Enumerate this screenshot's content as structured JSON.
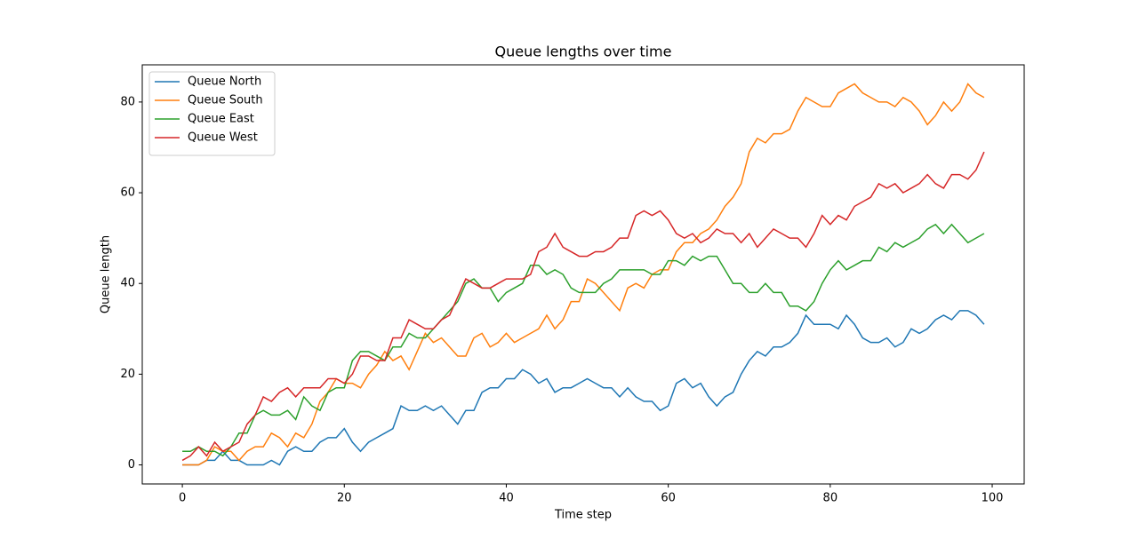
{
  "chart_data": {
    "type": "line",
    "title": "Queue lengths over time",
    "xlabel": "Time step",
    "ylabel": "Queue length",
    "x": [
      0,
      1,
      2,
      3,
      4,
      5,
      6,
      7,
      8,
      9,
      10,
      11,
      12,
      13,
      14,
      15,
      16,
      17,
      18,
      19,
      20,
      21,
      22,
      23,
      24,
      25,
      26,
      27,
      28,
      29,
      30,
      31,
      32,
      33,
      34,
      35,
      36,
      37,
      38,
      39,
      40,
      41,
      42,
      43,
      44,
      45,
      46,
      47,
      48,
      49,
      50,
      51,
      52,
      53,
      54,
      55,
      56,
      57,
      58,
      59,
      60,
      61,
      62,
      63,
      64,
      65,
      66,
      67,
      68,
      69,
      70,
      71,
      72,
      73,
      74,
      75,
      76,
      77,
      78,
      79,
      80,
      81,
      82,
      83,
      84,
      85,
      86,
      87,
      88,
      89,
      90,
      91,
      92,
      93,
      94,
      95,
      96,
      97,
      98,
      99
    ],
    "series": [
      {
        "name": "Queue North",
        "color": "#1f77b4",
        "values": [
          0,
          0,
          0,
          1,
          1,
          3,
          1,
          1,
          0,
          0,
          0,
          1,
          0,
          3,
          4,
          3,
          3,
          5,
          6,
          6,
          8,
          5,
          3,
          5,
          6,
          7,
          8,
          13,
          12,
          12,
          13,
          12,
          13,
          11,
          9,
          12,
          12,
          16,
          17,
          17,
          19,
          19,
          21,
          20,
          18,
          19,
          16,
          17,
          17,
          18,
          19,
          18,
          17,
          17,
          15,
          17,
          15,
          14,
          14,
          12,
          13,
          18,
          19,
          17,
          18,
          15,
          13,
          15,
          16,
          20,
          23,
          25,
          24,
          26,
          26,
          27,
          29,
          33,
          31,
          31,
          31,
          30,
          33,
          31,
          28,
          27,
          27,
          28,
          26,
          27,
          30,
          29,
          30,
          32,
          33,
          32,
          34,
          34,
          33,
          31
        ]
      },
      {
        "name": "Queue South",
        "color": "#ff7f0e",
        "values": [
          0,
          0,
          0,
          1,
          4,
          3,
          3,
          1,
          3,
          4,
          4,
          7,
          6,
          4,
          7,
          6,
          9,
          14,
          16,
          19,
          18,
          18,
          17,
          20,
          22,
          25,
          23,
          24,
          21,
          25,
          29,
          27,
          28,
          26,
          24,
          24,
          28,
          29,
          26,
          27,
          29,
          27,
          28,
          29,
          30,
          33,
          30,
          32,
          36,
          36,
          41,
          40,
          38,
          36,
          34,
          39,
          40,
          39,
          42,
          43,
          43,
          47,
          49,
          49,
          51,
          52,
          54,
          57,
          59,
          62,
          69,
          72,
          71,
          73,
          73,
          74,
          78,
          81,
          80,
          79,
          79,
          82,
          83,
          84,
          82,
          81,
          80,
          80,
          79,
          81,
          80,
          78,
          75,
          77,
          80,
          78,
          80,
          84,
          82,
          81
        ]
      },
      {
        "name": "Queue East",
        "color": "#2ca02c",
        "values": [
          3,
          3,
          4,
          3,
          3,
          2,
          4,
          7,
          7,
          11,
          12,
          11,
          11,
          12,
          10,
          15,
          13,
          12,
          16,
          17,
          17,
          23,
          25,
          25,
          24,
          23,
          26,
          26,
          29,
          28,
          28,
          30,
          32,
          34,
          36,
          40,
          41,
          39,
          39,
          36,
          38,
          39,
          40,
          44,
          44,
          42,
          43,
          42,
          39,
          38,
          38,
          38,
          40,
          41,
          43,
          43,
          43,
          43,
          42,
          42,
          45,
          45,
          44,
          46,
          45,
          46,
          46,
          43,
          40,
          40,
          38,
          38,
          40,
          38,
          38,
          35,
          35,
          34,
          36,
          40,
          43,
          45,
          43,
          44,
          45,
          45,
          48,
          47,
          49,
          48,
          49,
          50,
          52,
          53,
          51,
          53,
          51,
          49,
          50,
          51
        ]
      },
      {
        "name": "Queue West",
        "color": "#d62728",
        "values": [
          1,
          2,
          4,
          2,
          5,
          3,
          4,
          5,
          9,
          11,
          15,
          14,
          16,
          17,
          15,
          17,
          17,
          17,
          19,
          19,
          18,
          20,
          24,
          24,
          23,
          23,
          28,
          28,
          32,
          31,
          30,
          30,
          32,
          33,
          37,
          41,
          40,
          39,
          39,
          40,
          41,
          41,
          41,
          42,
          47,
          48,
          51,
          48,
          47,
          46,
          46,
          47,
          47,
          48,
          50,
          50,
          55,
          56,
          55,
          56,
          54,
          51,
          50,
          51,
          49,
          50,
          52,
          51,
          51,
          49,
          51,
          48,
          50,
          52,
          51,
          50,
          50,
          48,
          51,
          55,
          53,
          55,
          54,
          57,
          58,
          59,
          62,
          61,
          62,
          60,
          61,
          62,
          64,
          62,
          61,
          64,
          64,
          63,
          65,
          69
        ]
      }
    ],
    "xlim": [
      -4.95,
      103.95
    ],
    "ylim": [
      -4.2,
      88.2
    ],
    "xticks": [
      0,
      20,
      40,
      60,
      80,
      100
    ],
    "yticks": [
      0,
      20,
      40,
      60,
      80
    ],
    "legend": "upper left",
    "grid": false
  }
}
